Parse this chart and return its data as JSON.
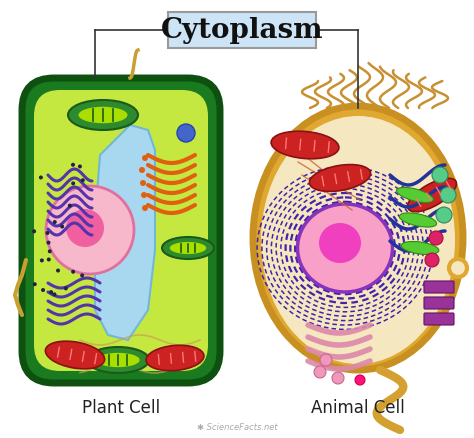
{
  "title": "Cytoplasm",
  "title_box_color": "#cce4f5",
  "title_box_edge": "#999999",
  "title_fontsize": 20,
  "title_fontweight": "bold",
  "label_plant": "Plant Cell",
  "label_animal": "Animal Cell",
  "label_fontsize": 12,
  "watermark": "ScienceFacts.net",
  "bg_color": "#ffffff",
  "connector_line_color": "#333333"
}
